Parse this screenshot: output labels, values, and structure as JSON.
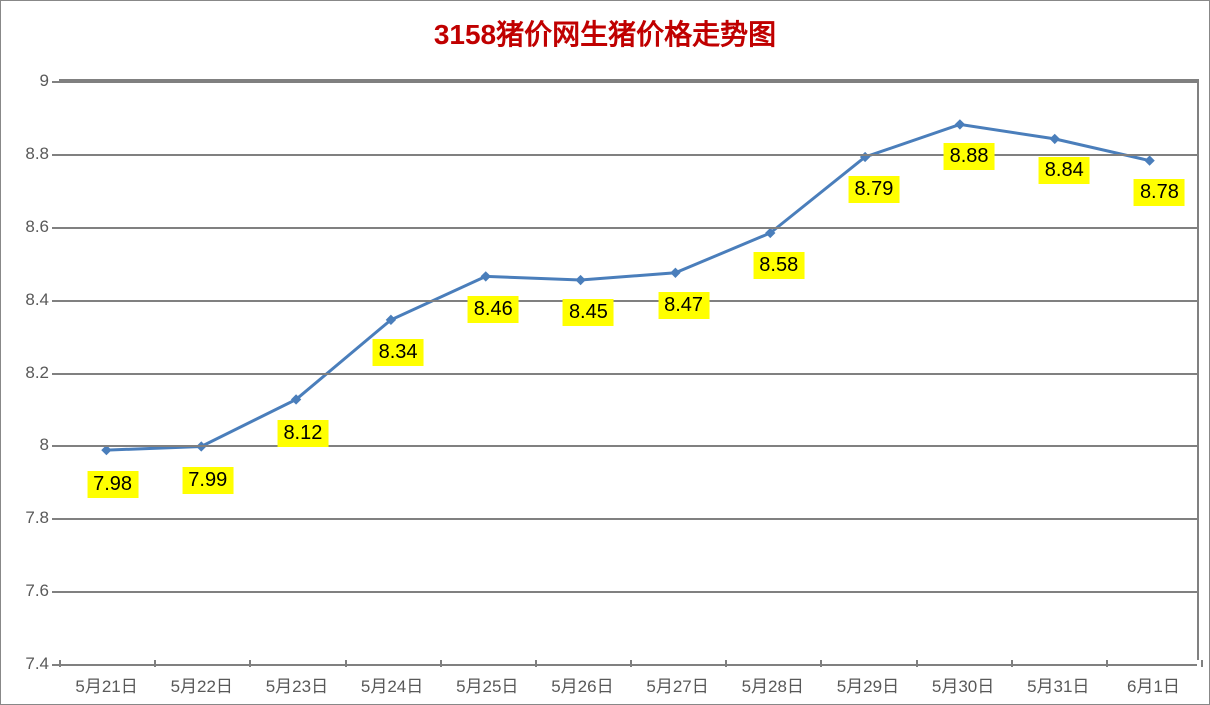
{
  "chart": {
    "type": "line",
    "title": "3158猪价网生猪价格走势图",
    "title_color": "#c00000",
    "title_fontsize": 28,
    "categories": [
      "5月21日",
      "5月22日",
      "5月23日",
      "5月24日",
      "5月25日",
      "5月26日",
      "5月27日",
      "5月28日",
      "5月29日",
      "5月30日",
      "5月31日",
      "6月1日"
    ],
    "values": [
      7.98,
      7.99,
      8.12,
      8.34,
      8.46,
      8.45,
      8.47,
      8.58,
      8.79,
      8.88,
      8.84,
      8.78
    ],
    "value_labels": [
      "7.98",
      "7.99",
      "8.12",
      "8.34",
      "8.46",
      "8.45",
      "8.47",
      "8.58",
      "8.79",
      "8.88",
      "8.84",
      "8.78"
    ],
    "ylim": [
      7.4,
      9.0
    ],
    "yticks": [
      7.4,
      7.6,
      7.8,
      8.0,
      8.2,
      8.4,
      8.6,
      8.8,
      9.0
    ],
    "ytick_labels": [
      "7.4",
      "7.6",
      "7.8",
      "8",
      "8.2",
      "8.4",
      "8.6",
      "8.8",
      "9"
    ],
    "line_color": "#4a7ebb",
    "line_width": 3,
    "marker_style": "diamond",
    "marker_size": 9,
    "marker_color": "#4a7ebb",
    "grid_color": "#808080",
    "background_color": "#ffffff",
    "axis_label_color": "#595959",
    "axis_label_fontsize": 17,
    "data_label_background": "#ffff00",
    "data_label_fontsize": 20,
    "data_label_color": "#000000",
    "border_color": "#888888"
  }
}
